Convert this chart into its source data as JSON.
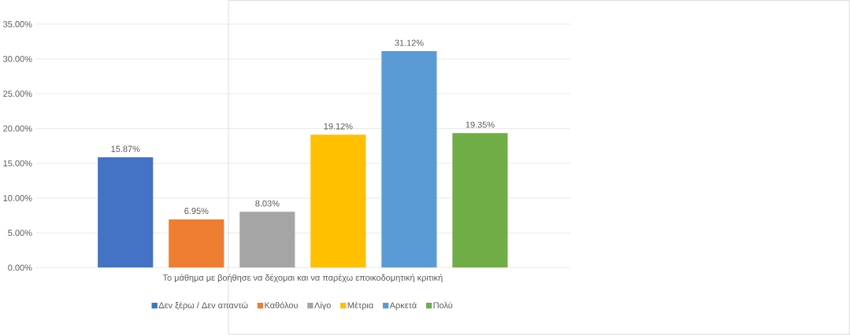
{
  "chart_data": {
    "type": "bar",
    "categories": [
      "Το μάθημα με βοήθησε να δέχομαι και να παρέχω εποικοδομητική κριτική"
    ],
    "series": [
      {
        "name": "Δεν ξέρω / Δεν απαντώ",
        "color": "#4472c4",
        "values": [
          15.87
        ],
        "value_labels": [
          "15.87%"
        ]
      },
      {
        "name": "Καθόλου",
        "color": "#ed7d31",
        "values": [
          6.95
        ],
        "value_labels": [
          "6.95%"
        ]
      },
      {
        "name": "Λίγο",
        "color": "#a5a5a5",
        "values": [
          8.03
        ],
        "value_labels": [
          "8.03%"
        ]
      },
      {
        "name": "Μέτρια",
        "color": "#ffc000",
        "values": [
          19.12
        ],
        "value_labels": [
          "19.12%"
        ]
      },
      {
        "name": "Αρκετά",
        "color": "#5b9bd5",
        "values": [
          31.12
        ],
        "value_labels": [
          "31.12%"
        ]
      },
      {
        "name": "Πολύ",
        "color": "#70ad47",
        "values": [
          19.35
        ],
        "value_labels": [
          "19.35%"
        ]
      }
    ],
    "ylim": [
      0,
      35
    ],
    "yticks": [
      {
        "value": 0,
        "label": "0.00%"
      },
      {
        "value": 5,
        "label": "5.00%"
      },
      {
        "value": 10,
        "label": "10.00%"
      },
      {
        "value": 15,
        "label": "15.00%"
      },
      {
        "value": 20,
        "label": "20.00%"
      },
      {
        "value": 25,
        "label": "25.00%"
      },
      {
        "value": 30,
        "label": "30.00%"
      },
      {
        "value": 35,
        "label": "35.00%"
      }
    ],
    "grid": "y",
    "legend": "bottom"
  }
}
